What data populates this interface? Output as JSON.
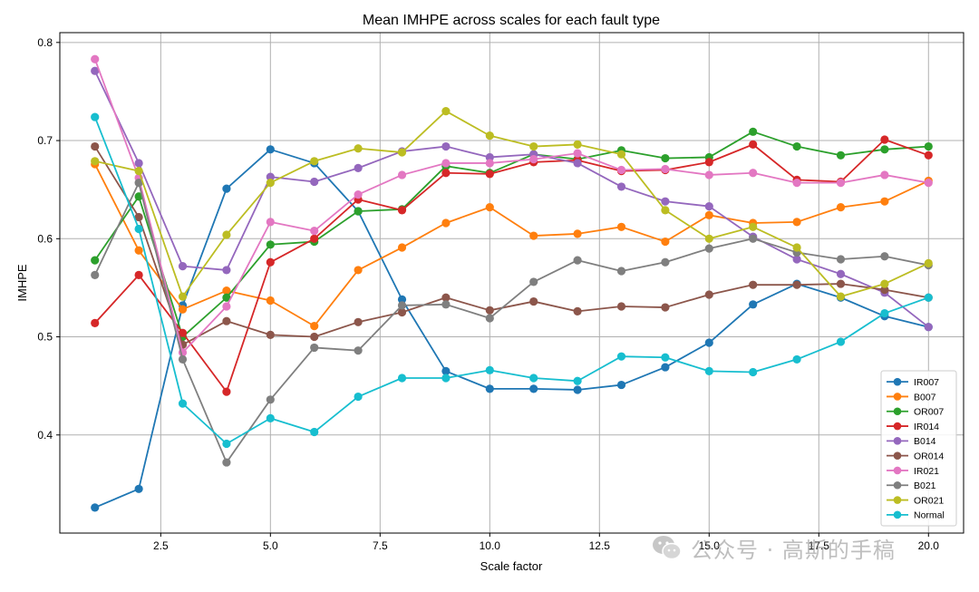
{
  "watermark": {
    "text": "公众号 · 高斯的手稿"
  },
  "chart_data": {
    "type": "line",
    "title": "Mean IMHPE across scales for each fault type",
    "xlabel": "Scale factor",
    "ylabel": "IMHPE",
    "xlim": [
      0.2,
      20.8
    ],
    "ylim": [
      0.3,
      0.81
    ],
    "xticks": [
      2.5,
      5.0,
      7.5,
      10.0,
      12.5,
      15.0,
      17.5,
      20.0
    ],
    "xtick_labels": [
      "2.5",
      "5.0",
      "7.5",
      "10.0",
      "12.5",
      "15.0",
      "17.5",
      "20.0"
    ],
    "yticks": [
      0.4,
      0.5,
      0.6,
      0.7,
      0.8
    ],
    "ytick_labels": [
      "0.4",
      "0.5",
      "0.6",
      "0.7",
      "0.8"
    ],
    "grid": true,
    "legend_position": "lower-right",
    "x": [
      1,
      2,
      3,
      4,
      5,
      6,
      7,
      8,
      9,
      10,
      11,
      12,
      13,
      14,
      15,
      16,
      17,
      18,
      19,
      20
    ],
    "series": [
      {
        "name": "IR007",
        "color": "#1f77b4",
        "values": [
          0.326,
          0.345,
          0.532,
          0.651,
          0.691,
          0.677,
          0.628,
          0.538,
          0.465,
          0.447,
          0.447,
          0.446,
          0.451,
          0.469,
          0.494,
          0.533,
          0.554,
          0.54,
          0.521,
          0.51
        ]
      },
      {
        "name": "B007",
        "color": "#ff7f0e",
        "values": [
          0.676,
          0.588,
          0.528,
          0.547,
          0.537,
          0.511,
          0.568,
          0.591,
          0.616,
          0.632,
          0.603,
          0.605,
          0.612,
          0.597,
          0.624,
          0.616,
          0.617,
          0.632,
          0.638,
          0.659
        ]
      },
      {
        "name": "OR007",
        "color": "#2ca02c",
        "values": [
          0.578,
          0.643,
          0.5,
          0.54,
          0.594,
          0.597,
          0.628,
          0.63,
          0.674,
          0.667,
          0.686,
          0.681,
          0.69,
          0.682,
          0.683,
          0.709,
          0.694,
          0.685,
          0.691,
          0.694
        ]
      },
      {
        "name": "IR014",
        "color": "#d62728",
        "values": [
          0.514,
          0.563,
          0.504,
          0.444,
          0.576,
          0.6,
          0.64,
          0.629,
          0.667,
          0.666,
          0.678,
          0.68,
          0.669,
          0.67,
          0.678,
          0.696,
          0.66,
          0.658,
          0.701,
          0.685
        ]
      },
      {
        "name": "B014",
        "color": "#9467bd",
        "values": [
          0.771,
          0.677,
          0.572,
          0.568,
          0.663,
          0.658,
          0.672,
          0.689,
          0.694,
          0.683,
          0.686,
          0.677,
          0.653,
          0.638,
          0.633,
          0.602,
          0.579,
          0.564,
          0.545,
          0.51
        ]
      },
      {
        "name": "OR014",
        "color": "#8c564b",
        "values": [
          0.694,
          0.622,
          0.492,
          0.516,
          0.502,
          0.5,
          0.515,
          0.525,
          0.54,
          0.527,
          0.536,
          0.526,
          0.531,
          0.53,
          0.543,
          0.553,
          0.553,
          0.554,
          0.548,
          0.54
        ]
      },
      {
        "name": "IR021",
        "color": "#e377c2",
        "values": [
          0.783,
          0.662,
          0.484,
          0.531,
          0.617,
          0.608,
          0.645,
          0.665,
          0.677,
          0.677,
          0.681,
          0.687,
          0.67,
          0.671,
          0.665,
          0.667,
          0.657,
          0.657,
          0.665,
          0.657
        ]
      },
      {
        "name": "B021",
        "color": "#7f7f7f",
        "values": [
          0.563,
          0.657,
          0.477,
          0.372,
          0.436,
          0.489,
          0.486,
          0.532,
          0.533,
          0.519,
          0.556,
          0.578,
          0.567,
          0.576,
          0.59,
          0.6,
          0.586,
          0.579,
          0.582,
          0.573
        ]
      },
      {
        "name": "OR021",
        "color": "#bcbd22",
        "values": [
          0.679,
          0.669,
          0.541,
          0.604,
          0.657,
          0.679,
          0.692,
          0.688,
          0.73,
          0.705,
          0.694,
          0.696,
          0.686,
          0.629,
          0.6,
          0.612,
          0.591,
          0.541,
          0.554,
          0.575
        ]
      },
      {
        "name": "Normal",
        "color": "#17becf",
        "values": [
          0.724,
          0.61,
          0.432,
          0.391,
          0.417,
          0.403,
          0.439,
          0.458,
          0.458,
          0.466,
          0.458,
          0.455,
          0.48,
          0.479,
          0.465,
          0.464,
          0.477,
          0.495,
          0.524,
          0.54
        ]
      }
    ]
  }
}
